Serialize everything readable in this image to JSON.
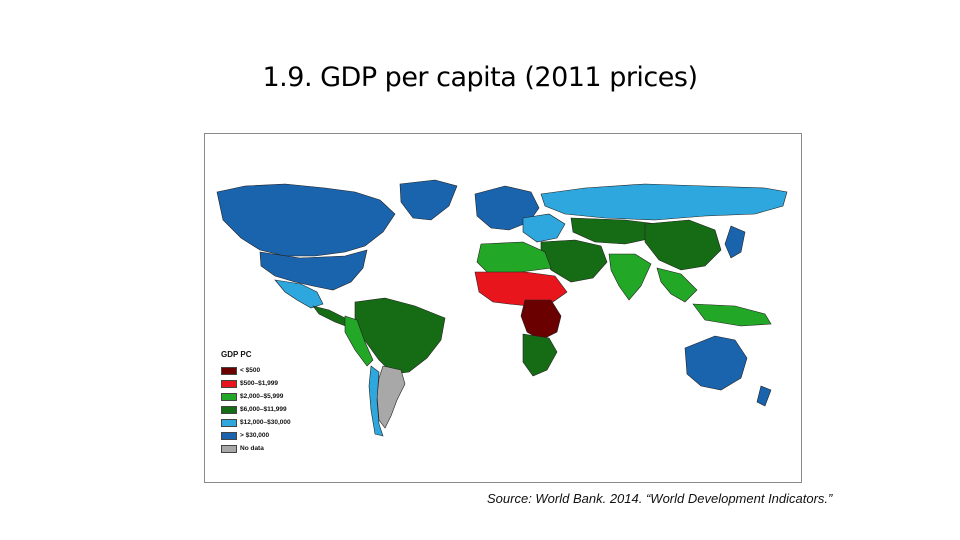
{
  "title": "1.9. GDP per capita (2011 prices)",
  "source": "Source: World Bank. 2014. “World Development Indicators.”",
  "legend": {
    "title": "GDP PC",
    "items": [
      {
        "label": "< $500",
        "color": "#6b0000"
      },
      {
        "label": "$500–$1,999",
        "color": "#e8161c"
      },
      {
        "label": "$2,000–$5,999",
        "color": "#23a727"
      },
      {
        "label": "$6,000–$11,999",
        "color": "#166c14"
      },
      {
        "label": "$12,000–$30,000",
        "color": "#2ea7de"
      },
      {
        "label": "> $30,000",
        "color": "#1a63ad"
      },
      {
        "label": "No data",
        "color": "#a8a8a8"
      }
    ]
  },
  "regions": [
    {
      "name": "canada",
      "category": "> $30,000"
    },
    {
      "name": "usa",
      "category": "> $30,000"
    },
    {
      "name": "greenland",
      "category": "> $30,000"
    },
    {
      "name": "mexico",
      "category": "$12,000–$30,000"
    },
    {
      "name": "central-america",
      "category": "$6,000–$11,999"
    },
    {
      "name": "brazil",
      "category": "$6,000–$11,999"
    },
    {
      "name": "andes",
      "category": "$2,000–$5,999"
    },
    {
      "name": "argentina",
      "category": "No data"
    },
    {
      "name": "chile",
      "category": "$12,000–$30,000"
    },
    {
      "name": "europe-west",
      "category": "> $30,000"
    },
    {
      "name": "europe-east",
      "category": "$12,000–$30,000"
    },
    {
      "name": "russia",
      "category": "$12,000–$30,000"
    },
    {
      "name": "central-asia",
      "category": "$6,000–$11,999"
    },
    {
      "name": "middle-east",
      "category": "$6,000–$11,999"
    },
    {
      "name": "north-africa",
      "category": "$2,000–$5,999"
    },
    {
      "name": "sahel",
      "category": "$500–$1,999"
    },
    {
      "name": "central-africa",
      "category": "< $500"
    },
    {
      "name": "southern-africa",
      "category": "$6,000–$11,999"
    },
    {
      "name": "india",
      "category": "$2,000–$5,999"
    },
    {
      "name": "china",
      "category": "$6,000–$11,999"
    },
    {
      "name": "southeast-asia",
      "category": "$2,000–$5,999"
    },
    {
      "name": "japan",
      "category": "> $30,000"
    },
    {
      "name": "australia",
      "category": "> $30,000"
    },
    {
      "name": "new-zealand",
      "category": "> $30,000"
    }
  ]
}
